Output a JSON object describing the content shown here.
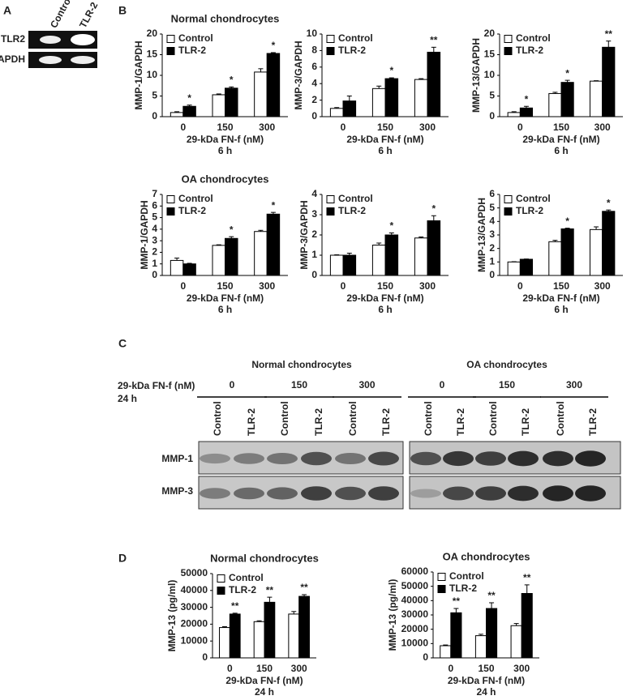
{
  "panel_labels": [
    "A",
    "B",
    "C",
    "D"
  ],
  "panel_a": {
    "lanes": [
      "Control",
      "TLR-2"
    ],
    "rows": [
      "TLR2",
      "GAPDH"
    ]
  },
  "panel_c": {
    "groups": [
      {
        "title": "Normal chondrocytes",
        "doses": [
          "0",
          "150",
          "300"
        ]
      },
      {
        "title": "OA chondrocytes",
        "doses": [
          "0",
          "150",
          "300"
        ]
      }
    ],
    "dose_label": "29-kDa FN-f (nM)",
    "time_label": "24 h",
    "lanes": [
      "Control",
      "TLR-2"
    ],
    "blots": [
      "MMP-1",
      "MMP-3"
    ]
  },
  "chart_data": [
    {
      "type": "bar",
      "title": "Normal chondrocytes",
      "ylabel": "MMP-1/GAPDH",
      "xlabel": "29-kDa FN-f (nM)",
      "xsublabel": "6 h",
      "categories": [
        "0",
        "150",
        "300"
      ],
      "series": [
        {
          "name": "Control",
          "color": "#ffffff",
          "values": [
            1,
            5.3,
            10.8
          ],
          "errors": [
            0.2,
            0.2,
            0.8
          ]
        },
        {
          "name": "TLR-2",
          "color": "#000000",
          "values": [
            2.5,
            6.9,
            15.3
          ],
          "errors": [
            0.3,
            0.3,
            0.2
          ]
        }
      ],
      "annotations": [
        "*",
        "*",
        "*"
      ],
      "ylim": [
        0,
        20
      ],
      "yticks": [
        0,
        5,
        10,
        15,
        20
      ],
      "legend": "upper left"
    },
    {
      "type": "bar",
      "ylabel": "MMP-3/GAPDH",
      "xlabel": "29-kDa FN-f (nM)",
      "xsublabel": "6 h",
      "categories": [
        "0",
        "150",
        "300"
      ],
      "series": [
        {
          "name": "Control",
          "color": "#ffffff",
          "values": [
            1.0,
            3.4,
            4.5
          ],
          "errors": [
            0.1,
            0.3,
            0.1
          ]
        },
        {
          "name": "TLR-2",
          "color": "#000000",
          "values": [
            1.9,
            4.6,
            7.8
          ],
          "errors": [
            0.6,
            0.1,
            0.6
          ]
        }
      ],
      "annotations": [
        null,
        "*",
        "**"
      ],
      "ylim": [
        0,
        10
      ],
      "yticks": [
        0,
        2,
        4,
        6,
        8,
        10
      ],
      "legend": "upper left"
    },
    {
      "type": "bar",
      "ylabel": "MMP-13/GAPDH",
      "xlabel": "29-kDa FN-f (nM)",
      "xsublabel": "6 h",
      "categories": [
        "0",
        "150",
        "300"
      ],
      "series": [
        {
          "name": "Control",
          "color": "#ffffff",
          "values": [
            1.0,
            5.6,
            8.6
          ],
          "errors": [
            0.2,
            0.3,
            0.1
          ]
        },
        {
          "name": "TLR-2",
          "color": "#000000",
          "values": [
            2.1,
            8.3,
            16.8
          ],
          "errors": [
            0.4,
            0.5,
            1.5
          ]
        }
      ],
      "annotations": [
        "*",
        "*",
        "**"
      ],
      "ylim": [
        0,
        20
      ],
      "yticks": [
        0,
        5,
        10,
        15,
        20
      ],
      "legend": "upper left"
    },
    {
      "type": "bar",
      "title": "OA chondrocytes",
      "ylabel": "MMP-1/GAPDH",
      "xlabel": "29-kDa FN-f (nM)",
      "xsublabel": "6 h",
      "categories": [
        "0",
        "150",
        "300"
      ],
      "series": [
        {
          "name": "Control",
          "color": "#ffffff",
          "values": [
            1.3,
            2.6,
            3.8
          ],
          "errors": [
            0.2,
            0.05,
            0.1
          ]
        },
        {
          "name": "TLR-2",
          "color": "#000000",
          "values": [
            1.0,
            3.2,
            5.3
          ],
          "errors": [
            0.05,
            0.15,
            0.15
          ]
        }
      ],
      "annotations": [
        null,
        "*",
        "*"
      ],
      "ylim": [
        0,
        7
      ],
      "yticks": [
        0,
        1,
        2,
        3,
        4,
        5,
        6,
        7
      ],
      "legend": "upper left"
    },
    {
      "type": "bar",
      "ylabel": "MMP-3/GAPDH",
      "xlabel": "29-kDa FN-f (nM)",
      "xsublabel": "6 h",
      "categories": [
        "0",
        "150",
        "300"
      ],
      "series": [
        {
          "name": "Control",
          "color": "#ffffff",
          "values": [
            1.0,
            1.5,
            1.85
          ],
          "errors": [
            0.02,
            0.1,
            0.05
          ]
        },
        {
          "name": "TLR-2",
          "color": "#000000",
          "values": [
            1.0,
            2.0,
            2.7
          ],
          "errors": [
            0.1,
            0.1,
            0.25
          ]
        }
      ],
      "annotations": [
        null,
        "*",
        "*"
      ],
      "ylim": [
        0,
        4
      ],
      "yticks": [
        0,
        1,
        2,
        3,
        4
      ],
      "legend": "upper left"
    },
    {
      "type": "bar",
      "ylabel": "MMP-13/GAPDH",
      "xlabel": "29-kDa FN-f (nM)",
      "xsublabel": "6 h",
      "categories": [
        "0",
        "150",
        "300"
      ],
      "series": [
        {
          "name": "Control",
          "color": "#ffffff",
          "values": [
            1.0,
            2.5,
            3.4
          ],
          "errors": [
            0.02,
            0.1,
            0.2
          ]
        },
        {
          "name": "TLR-2",
          "color": "#000000",
          "values": [
            1.2,
            3.45,
            4.75
          ],
          "errors": [
            0.02,
            0.05,
            0.1
          ]
        }
      ],
      "annotations": [
        null,
        "*",
        "*"
      ],
      "ylim": [
        0,
        6
      ],
      "yticks": [
        0,
        1,
        2,
        3,
        4,
        5,
        6
      ],
      "legend": "upper left"
    },
    {
      "type": "bar",
      "title": "Normal chondrocytes",
      "ylabel": "MMP-13 (pg/ml)",
      "xlabel": "29-kDa FN-f (nM)",
      "xsublabel": "24 h",
      "categories": [
        "0",
        "150",
        "300"
      ],
      "series": [
        {
          "name": "Control",
          "color": "#ffffff",
          "values": [
            18000,
            21500,
            26000
          ],
          "errors": [
            500,
            500,
            1500
          ]
        },
        {
          "name": "TLR-2",
          "color": "#000000",
          "values": [
            26000,
            33000,
            36500
          ],
          "errors": [
            500,
            3000,
            1000
          ]
        }
      ],
      "annotations": [
        "**",
        "**",
        "**"
      ],
      "ylim": [
        0,
        50000
      ],
      "yticks": [
        0,
        10000,
        20000,
        30000,
        40000,
        50000
      ],
      "legend": "upper left"
    },
    {
      "type": "bar",
      "title": "OA chondrocytes",
      "ylabel": "MMP-13 (pg/ml)",
      "xlabel": "29-kDa FN-f (nM)",
      "xsublabel": "24 h",
      "categories": [
        "0",
        "150",
        "300"
      ],
      "series": [
        {
          "name": "Control",
          "color": "#ffffff",
          "values": [
            8500,
            15500,
            22500
          ],
          "errors": [
            500,
            1000,
            1500
          ]
        },
        {
          "name": "TLR-2",
          "color": "#000000",
          "values": [
            31500,
            34500,
            45000
          ],
          "errors": [
            3000,
            4000,
            6000
          ]
        }
      ],
      "annotations": [
        "**",
        "**",
        "**"
      ],
      "ylim": [
        0,
        60000
      ],
      "yticks": [
        0,
        10000,
        20000,
        30000,
        40000,
        50000,
        60000
      ],
      "legend": "upper left"
    }
  ]
}
